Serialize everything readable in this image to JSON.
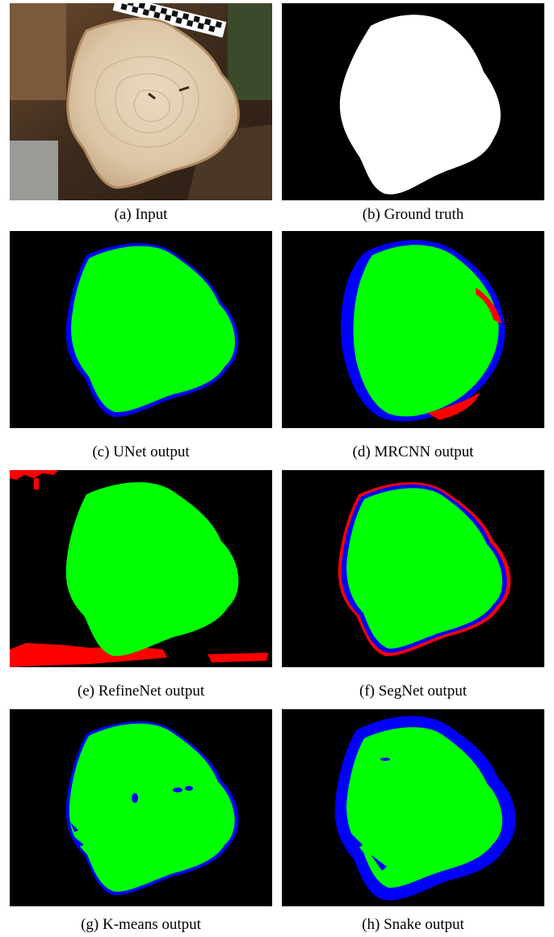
{
  "figure": {
    "panels": [
      {
        "caption": "(a) Input"
      },
      {
        "caption": "(b) Ground truth"
      },
      {
        "caption": "(c) UNet output"
      },
      {
        "caption": "(d) MRCNN output"
      },
      {
        "caption": "(e) RefineNet output"
      },
      {
        "caption": "(f) SegNet output"
      },
      {
        "caption": "(g) K-means output"
      },
      {
        "caption": "(h) Snake output"
      }
    ],
    "colors": {
      "background": "#000000",
      "true_positive": "#00ff00",
      "false_negative": "#0000ff",
      "false_positive": "#ff0000",
      "ground_truth": "#ffffff"
    }
  }
}
